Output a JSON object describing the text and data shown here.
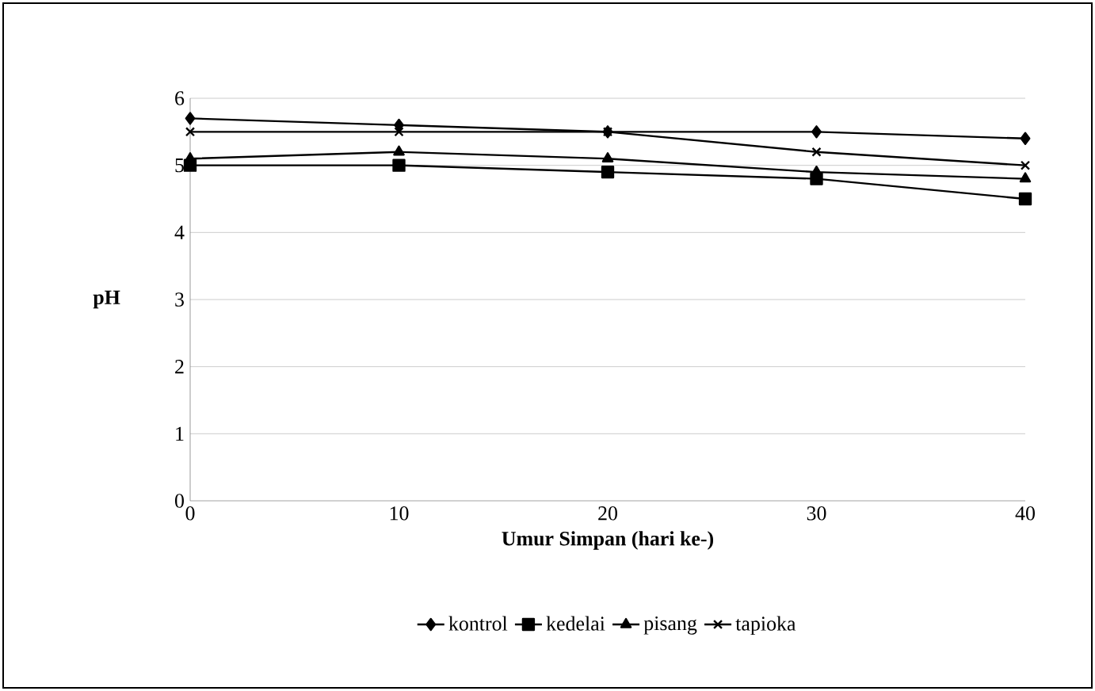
{
  "chart_data": {
    "type": "line",
    "xlabel": "Umur Simpan (hari ke-)",
    "ylabel": "pH",
    "x": [
      0,
      10,
      20,
      30,
      40
    ],
    "series": [
      {
        "name": "kontrol",
        "color": "#000000",
        "marker": "diamond",
        "values": [
          5.7,
          5.6,
          5.5,
          5.5,
          5.4
        ]
      },
      {
        "name": "kedelai",
        "color": "#000000",
        "marker": "square",
        "values": [
          5.0,
          5.0,
          4.9,
          4.8,
          4.5
        ]
      },
      {
        "name": "pisang",
        "color": "#000000",
        "marker": "triangle",
        "values": [
          5.1,
          5.2,
          5.1,
          4.9,
          4.8
        ]
      },
      {
        "name": "tapioka",
        "color": "#000000",
        "marker": "cross",
        "values": [
          5.5,
          5.5,
          5.5,
          5.2,
          5.0
        ]
      }
    ],
    "xlim": [
      0,
      40
    ],
    "xticks": [
      0,
      10,
      20,
      30,
      40
    ],
    "ylim": [
      0,
      6
    ],
    "yticks": [
      0,
      1,
      2,
      3,
      4,
      5,
      6
    ],
    "grid": "y",
    "legend": "bottom",
    "line_style": "solid"
  }
}
